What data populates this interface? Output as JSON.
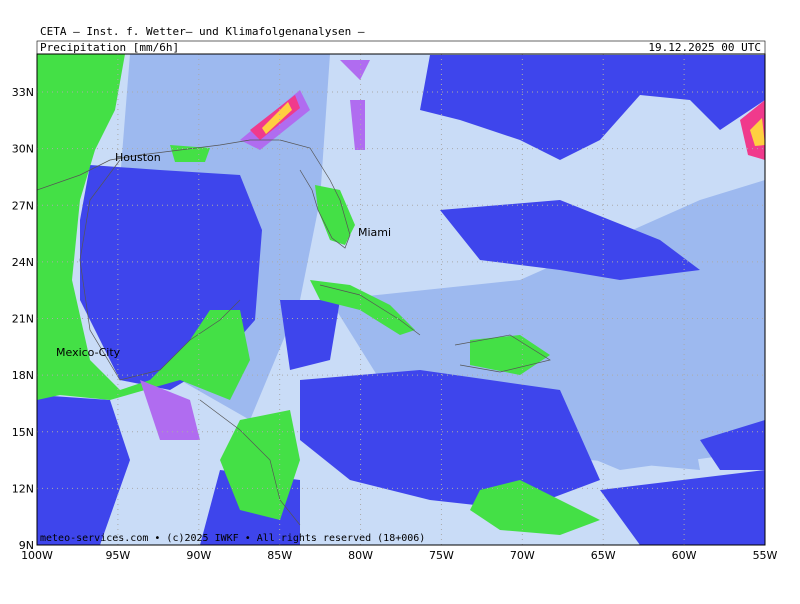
{
  "header": {
    "source": "CETA — Inst. f. Wetter— und Klimafolgenanalysen —",
    "title": "Precipitation [mm/6h]",
    "date": "19.12.2025 00 UTC"
  },
  "axes": {
    "lat_labels": [
      "33N",
      "30N",
      "27N",
      "24N",
      "21N",
      "18N",
      "15N",
      "12N",
      "9N"
    ],
    "lon_labels": [
      "100W",
      "95W",
      "90W",
      "85W",
      "80W",
      "75W",
      "70W",
      "65W",
      "60W",
      "55W"
    ]
  },
  "cities": [
    "Houston",
    "Miami",
    "Mexico-City"
  ],
  "footer": "meteo-services.com • (c)2025 IWKF • All rights reserved (18+006)"
}
